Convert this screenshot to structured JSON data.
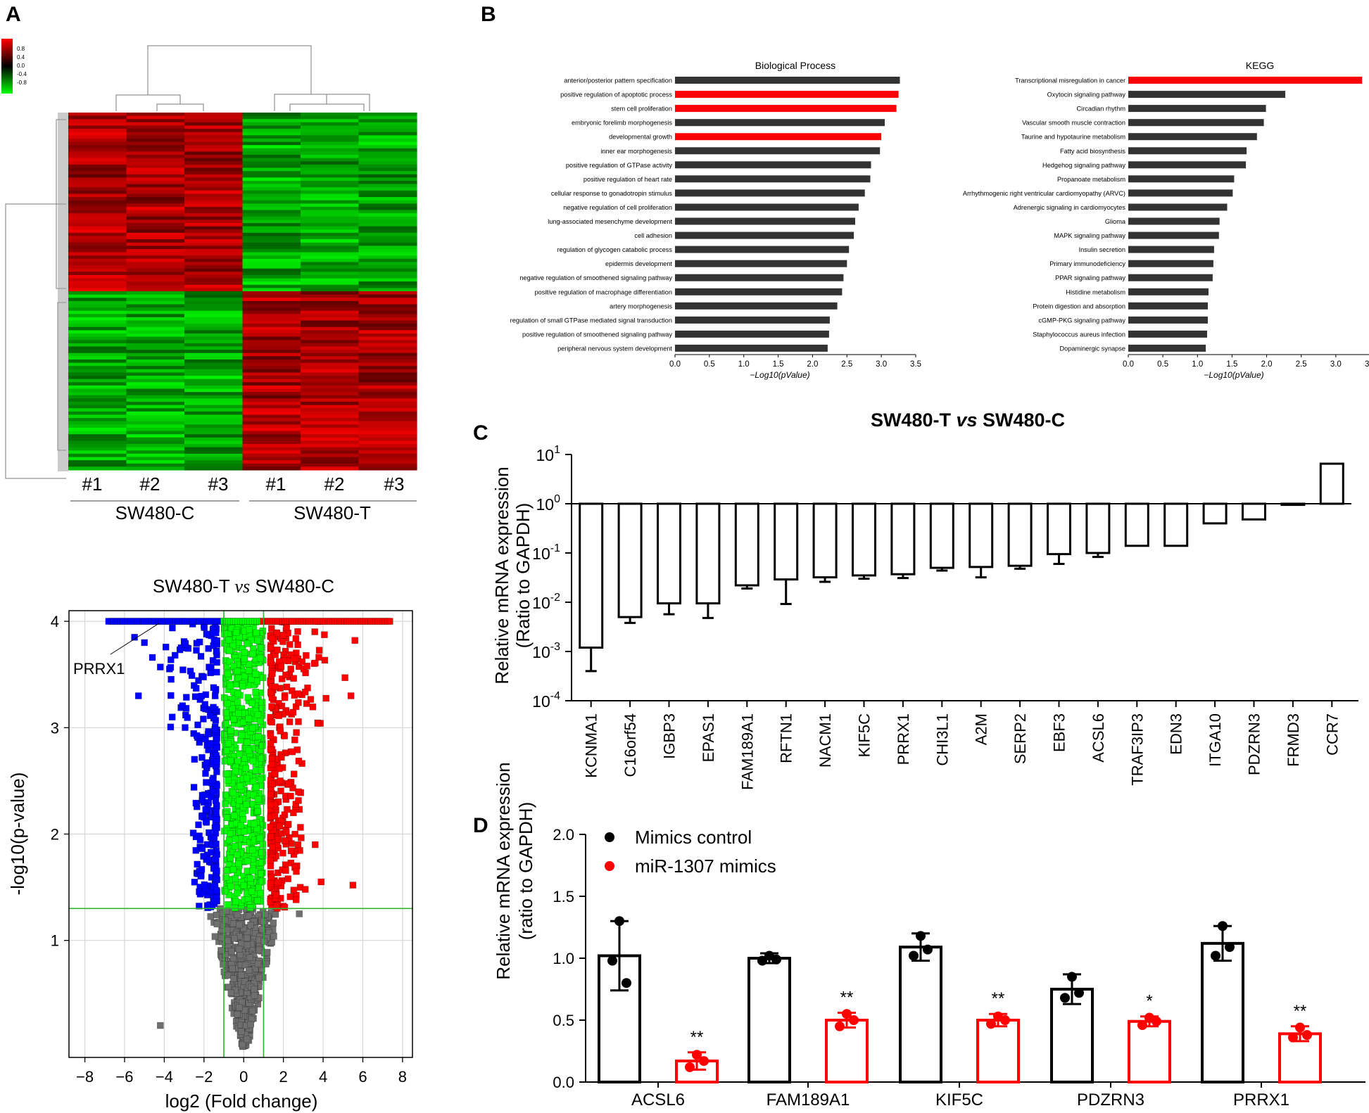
{
  "panels": {
    "a": "A",
    "b": "B",
    "c": "C",
    "d": "D"
  },
  "colors": {
    "red": "#ff0000",
    "green": "#00ff00",
    "blue": "#0000ff",
    "gray": "#6f6f6f",
    "bar_dark": "#333333",
    "black": "#000000"
  },
  "chart_data": [
    {
      "type": "heatmap",
      "legend_ticks": [
        "0.8",
        "0.4",
        "0.0",
        "-0.4",
        "-0.8"
      ],
      "samples": [
        "#1",
        "#2",
        "#3",
        "#1",
        "#2",
        "#3"
      ],
      "groups": [
        "SW480-C",
        "SW480-T"
      ]
    },
    {
      "type": "scatter",
      "title_prefix": "SW480-T ",
      "title_vs": "vs",
      "title_suffix": " SW480-C",
      "xlabel": "log2 (Fold change)",
      "ylabel": "-log10(p-value)",
      "xlim": [
        -8.8,
        8.5
      ],
      "ylim": [
        -0.1,
        4.1
      ],
      "xticks": [
        -8,
        -6,
        -4,
        -2,
        0,
        2,
        4,
        6,
        8
      ],
      "yticks": [
        1,
        2,
        3,
        4
      ],
      "annotation": "PRRX1",
      "pvalue_threshold": 1.3,
      "fc_threshold": 1
    },
    {
      "type": "bar",
      "title": "Biological Process",
      "xlabel": "-Log10(pValue)",
      "xlim": [
        0,
        3.5
      ],
      "xticks": [
        "0.0",
        "0.5",
        "1.0",
        "1.5",
        "2.0",
        "2.5",
        "3.0",
        "3.5"
      ],
      "categories": [
        "anterior/posterior pattern specification",
        "positive regulation of apoptotic process",
        "stem cell proliferation",
        "embryonic forelimb morphogenesis",
        "developmental growth",
        "inner ear morphogenesis",
        "positive regulation of GTPase activity",
        "positive regulation of heart rate",
        "cellular response to gonadotropin stimulus",
        "negative regulation of cell proliferation",
        "lung-associated mesenchyme development",
        "cell adhesion",
        "regulation of glycogen catabolic process",
        "epidermis development",
        "negative regulation of smoothened signaling pathway",
        "positive regulation of macrophage differentiation",
        "artery morphogenesis",
        "regulation of small GTPase mediated signal transduction",
        "positive regulation of smoothened signaling pathway",
        "peripheral nervous system development"
      ],
      "values": [
        3.27,
        3.25,
        3.22,
        3.05,
        3.0,
        2.98,
        2.85,
        2.84,
        2.76,
        2.67,
        2.62,
        2.6,
        2.53,
        2.5,
        2.45,
        2.43,
        2.36,
        2.25,
        2.24,
        2.22
      ],
      "highlight": [
        1,
        2,
        4
      ]
    },
    {
      "type": "bar",
      "title": "KEGG",
      "xlabel": "-Log10(pValue)",
      "xlim": [
        0,
        3.5
      ],
      "xticks": [
        "0.0",
        "0.5",
        "1.0",
        "1.5",
        "2.0",
        "2.5",
        "3.0",
        "3.5"
      ],
      "categories": [
        "Transcriptional misregulation in cancer",
        "Oxytocin signaling pathway",
        "Circadian rhythm",
        "Vascular smooth muscle contraction",
        "Taurine and hypotaurine metabolism",
        "Fatty acid biosynthesis",
        "Hedgehog signaling pathway",
        "Propanoate metabolism",
        "Arrhythmogenic right ventricular cardiomyopathy (ARVC)",
        "Adrenergic signaling in cardiomyocytes",
        "Glioma",
        "MAPK signaling pathway",
        "Insulin secretion",
        "Primary immunodeficiency",
        "PPAR signaling pathway",
        "Histidine metabolism",
        "Protein digestion and absorption",
        "cGMP-PKG signaling pathway",
        "Staphylococcus aureus infection",
        "Dopaminergic synapse"
      ],
      "values": [
        3.38,
        2.27,
        1.99,
        1.96,
        1.86,
        1.71,
        1.7,
        1.53,
        1.51,
        1.43,
        1.32,
        1.31,
        1.24,
        1.23,
        1.22,
        1.16,
        1.15,
        1.15,
        1.14,
        1.12
      ],
      "highlight": [
        0
      ]
    },
    {
      "type": "bar",
      "title_prefix": "SW480-T ",
      "title_vs": "vs",
      "title_suffix": " SW480-C",
      "ylabel": "Relative mRNA expression",
      "ylabel2": "(Ratio to GAPDH)",
      "yscale": "log",
      "ylim": [
        0.0001,
        10
      ],
      "ytick_base": "10",
      "ytick_exponents": [
        "-4",
        "-3",
        "-2",
        "-1",
        "0",
        "1"
      ],
      "categories": [
        "KCNMA1",
        "C16orf54",
        "IGBP3",
        "EPAS1",
        "FAM189A1",
        "RFTN1",
        "NACM1",
        "KIF5C",
        "PRRX1",
        "CHI3L1",
        "A2M",
        "SERP2",
        "EBF3",
        "ACSL6",
        "TRAF3IP3",
        "EDN3",
        "ITGA10",
        "PDZRN3",
        "FRMD3",
        "CCR7"
      ],
      "values": [
        0.0012,
        0.005,
        0.0095,
        0.0095,
        0.022,
        0.029,
        0.032,
        0.035,
        0.037,
        0.05,
        0.052,
        0.055,
        0.095,
        0.1,
        0.14,
        0.14,
        0.4,
        0.48,
        0.95,
        6.5
      ],
      "error_low": [
        0.0004,
        0.0038,
        0.0057,
        0.0048,
        0.019,
        0.0092,
        0.026,
        0.03,
        0.031,
        0.044,
        0.032,
        0.048,
        0.06,
        0.083,
        0.14,
        0.14,
        0.4,
        0.48,
        0.95,
        6.5
      ]
    },
    {
      "type": "bar",
      "ylabel": "Relative mRNA expression",
      "ylabel2": "(ratio to GAPDH)",
      "ylim": [
        0,
        2.0
      ],
      "yticks": [
        "0.0",
        "0.5",
        "1.0",
        "1.5",
        "2.0"
      ],
      "categories": [
        "ACSL6",
        "FAM189A1",
        "KIF5C",
        "PDZRN3",
        "PRRX1"
      ],
      "series": [
        {
          "name": "Mimics control",
          "values": [
            1.02,
            1.0,
            1.09,
            0.75,
            1.12
          ],
          "sd": [
            0.28,
            0.04,
            0.11,
            0.12,
            0.14
          ],
          "points": [
            [
              1.3,
              0.98,
              0.8
            ],
            [
              1.02,
              0.98,
              0.99
            ],
            [
              1.18,
              1.02,
              1.07
            ],
            [
              0.85,
              0.68,
              0.72
            ],
            [
              1.26,
              1.02,
              1.09
            ]
          ]
        },
        {
          "name": "miR-1307 mimics",
          "values": [
            0.17,
            0.5,
            0.5,
            0.49,
            0.39
          ],
          "sd": [
            0.07,
            0.06,
            0.05,
            0.04,
            0.06
          ],
          "points": [
            [
              0.22,
              0.12,
              0.17
            ],
            [
              0.55,
              0.45,
              0.5
            ],
            [
              0.53,
              0.47,
              0.5
            ],
            [
              0.52,
              0.46,
              0.49
            ],
            [
              0.44,
              0.36,
              0.38
            ]
          ]
        }
      ],
      "significance": [
        "**",
        "**",
        "**",
        "*",
        "**"
      ]
    }
  ]
}
